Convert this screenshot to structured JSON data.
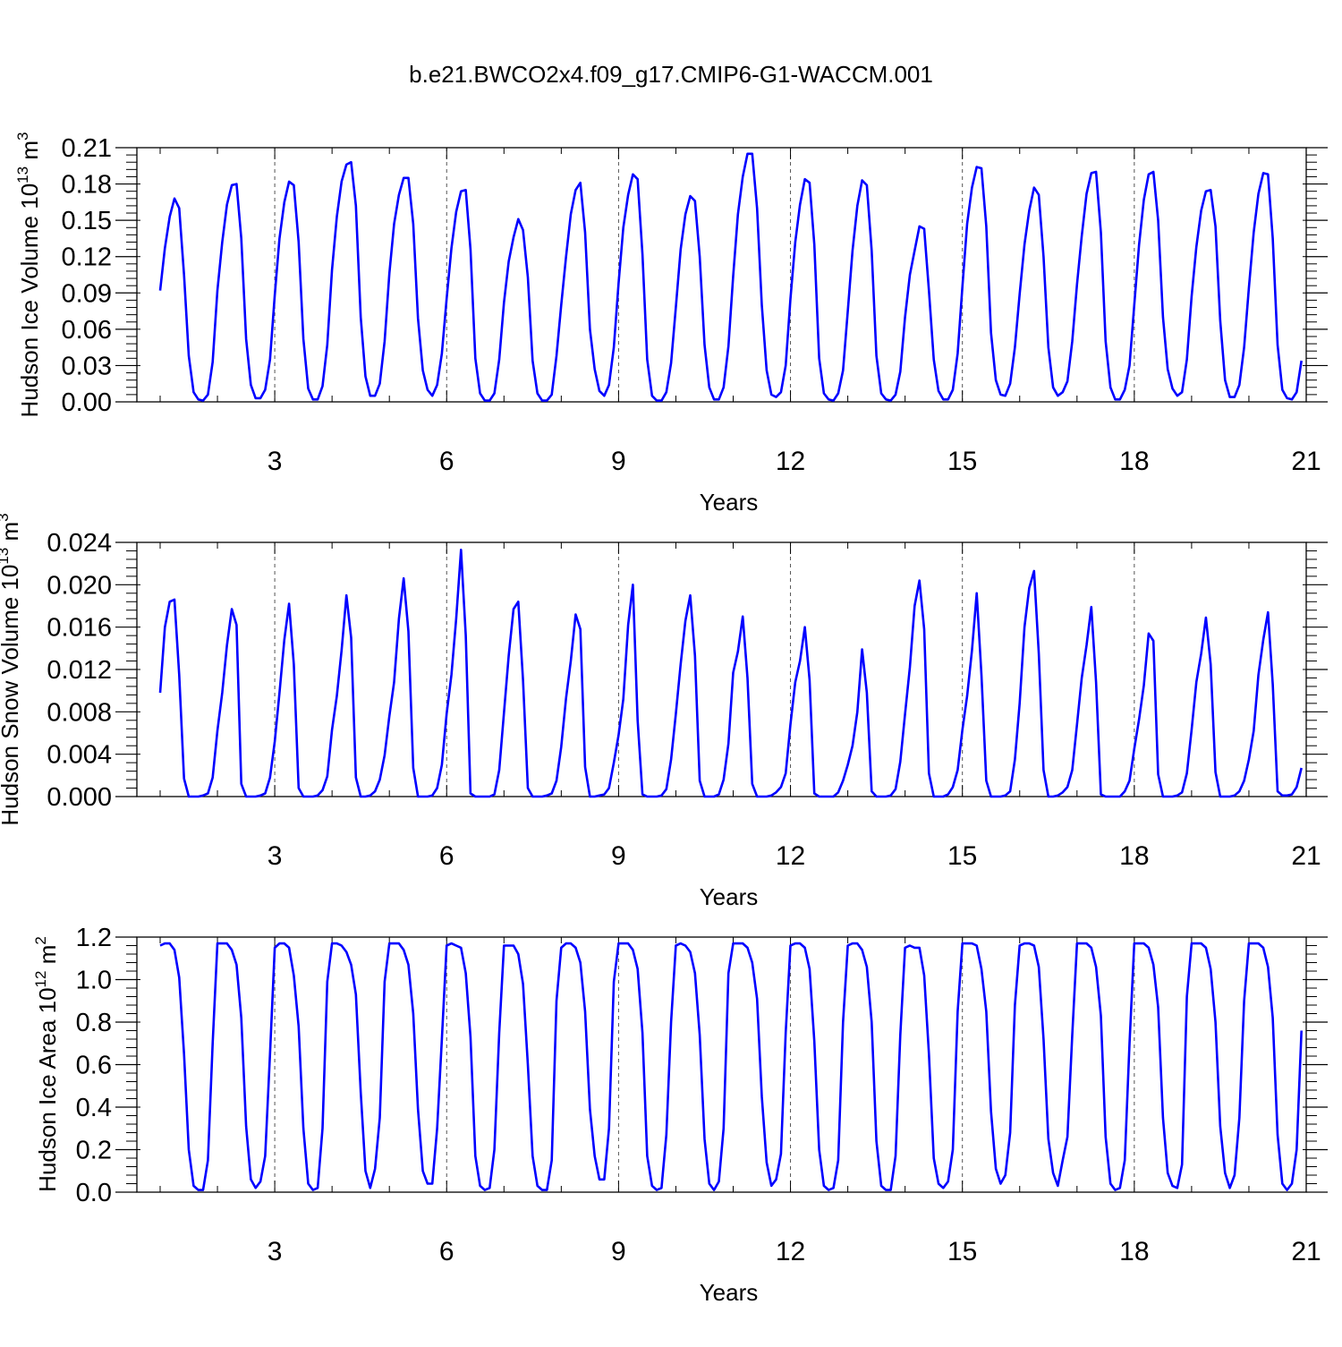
{
  "figure": {
    "title": "b.e21.BWCO2x4.f09_g17.CMIP6-G1-WACCM.001",
    "line_color": "#0000ff"
  },
  "chart_data": [
    {
      "type": "line",
      "title": "",
      "xlabel": "Years",
      "ylabel": "Hudson Ice Volume 10",
      "ylabel_exp": "13",
      "ylabel_unit": "m",
      "ylabel_unit_exp": "3",
      "xlim": [
        1.0,
        21.0
      ],
      "ylim": [
        0.0,
        0.21
      ],
      "xticks": [
        3,
        6,
        9,
        12,
        15,
        18,
        21
      ],
      "xtick_labels": [
        "3",
        "6",
        "9",
        "12",
        "15",
        "18",
        "21"
      ],
      "yticks": [
        0.0,
        0.03,
        0.06,
        0.09,
        0.12,
        0.15,
        0.18,
        0.21
      ],
      "ytick_labels": [
        "0.00",
        "0.03",
        "0.06",
        "0.09",
        "0.12",
        "0.15",
        "0.18",
        "0.21"
      ],
      "grid": "vertical dashed lines at major x ticks",
      "series": [
        {
          "x_start": 1.0,
          "x_step": 0.0833333,
          "values": [
            0.092,
            0.127,
            0.153,
            0.168,
            0.16,
            0.105,
            0.038,
            0.008,
            0.002,
            0.001,
            0.006,
            0.033,
            0.092,
            0.132,
            0.163,
            0.179,
            0.18,
            0.135,
            0.052,
            0.014,
            0.003,
            0.003,
            0.01,
            0.035,
            0.088,
            0.135,
            0.165,
            0.182,
            0.179,
            0.132,
            0.052,
            0.011,
            0.002,
            0.002,
            0.013,
            0.047,
            0.109,
            0.153,
            0.182,
            0.196,
            0.198,
            0.162,
            0.07,
            0.021,
            0.005,
            0.005,
            0.015,
            0.05,
            0.106,
            0.147,
            0.171,
            0.185,
            0.185,
            0.147,
            0.069,
            0.026,
            0.01,
            0.005,
            0.014,
            0.04,
            0.085,
            0.127,
            0.157,
            0.174,
            0.175,
            0.126,
            0.036,
            0.007,
            0.001,
            0.001,
            0.007,
            0.035,
            0.082,
            0.116,
            0.136,
            0.151,
            0.142,
            0.103,
            0.034,
            0.007,
            0.001,
            0.001,
            0.006,
            0.038,
            0.08,
            0.12,
            0.155,
            0.175,
            0.181,
            0.14,
            0.06,
            0.027,
            0.009,
            0.005,
            0.014,
            0.045,
            0.098,
            0.144,
            0.171,
            0.188,
            0.184,
            0.122,
            0.035,
            0.005,
            0.001,
            0.001,
            0.008,
            0.032,
            0.078,
            0.126,
            0.155,
            0.17,
            0.166,
            0.12,
            0.047,
            0.012,
            0.002,
            0.002,
            0.012,
            0.046,
            0.104,
            0.155,
            0.186,
            0.205,
            0.205,
            0.16,
            0.08,
            0.026,
            0.006,
            0.004,
            0.008,
            0.03,
            0.085,
            0.132,
            0.163,
            0.184,
            0.181,
            0.13,
            0.036,
            0.007,
            0.002,
            0.001,
            0.007,
            0.026,
            0.075,
            0.125,
            0.162,
            0.183,
            0.179,
            0.125,
            0.038,
            0.007,
            0.002,
            0.001,
            0.006,
            0.025,
            0.07,
            0.105,
            0.125,
            0.145,
            0.143,
            0.092,
            0.035,
            0.009,
            0.002,
            0.002,
            0.01,
            0.04,
            0.095,
            0.147,
            0.177,
            0.194,
            0.193,
            0.145,
            0.057,
            0.018,
            0.006,
            0.005,
            0.015,
            0.045,
            0.089,
            0.13,
            0.158,
            0.177,
            0.171,
            0.12,
            0.045,
            0.012,
            0.005,
            0.008,
            0.017,
            0.05,
            0.097,
            0.137,
            0.172,
            0.189,
            0.19,
            0.14,
            0.05,
            0.012,
            0.002,
            0.002,
            0.01,
            0.03,
            0.08,
            0.13,
            0.167,
            0.188,
            0.19,
            0.15,
            0.07,
            0.027,
            0.011,
            0.005,
            0.008,
            0.035,
            0.087,
            0.128,
            0.158,
            0.174,
            0.175,
            0.145,
            0.067,
            0.018,
            0.004,
            0.004,
            0.014,
            0.045,
            0.094,
            0.14,
            0.172,
            0.189,
            0.188,
            0.135,
            0.047,
            0.01,
            0.003,
            0.002,
            0.008,
            0.034
          ]
        }
      ]
    },
    {
      "type": "line",
      "title": "",
      "xlabel": "Years",
      "ylabel": "Hudson Snow Volume 10",
      "ylabel_exp": "13",
      "ylabel_unit": "m",
      "ylabel_unit_exp": "3",
      "xlim": [
        1.0,
        21.0
      ],
      "ylim": [
        0.0,
        0.024
      ],
      "xticks": [
        3,
        6,
        9,
        12,
        15,
        18,
        21
      ],
      "xtick_labels": [
        "3",
        "6",
        "9",
        "12",
        "15",
        "18",
        "21"
      ],
      "yticks": [
        0.0,
        0.004,
        0.008,
        0.012,
        0.016,
        0.02,
        0.024
      ],
      "ytick_labels": [
        "0.000",
        "0.004",
        "0.008",
        "0.012",
        "0.016",
        "0.020",
        "0.024"
      ],
      "grid": "vertical dashed lines at major x ticks",
      "series": [
        {
          "x_start": 1.0,
          "x_step": 0.0833333,
          "values": [
            0.0098,
            0.016,
            0.0184,
            0.0186,
            0.0115,
            0.0017,
            0.0,
            0.0,
            0.0,
            0.0001,
            0.0003,
            0.0018,
            0.0062,
            0.0098,
            0.0143,
            0.0177,
            0.0162,
            0.0012,
            0.0,
            0.0,
            0.0,
            0.0001,
            0.0003,
            0.0018,
            0.0052,
            0.0098,
            0.0148,
            0.0182,
            0.0125,
            0.0008,
            0.0,
            0.0,
            0.0,
            0.0001,
            0.0006,
            0.0019,
            0.0063,
            0.0095,
            0.0138,
            0.019,
            0.015,
            0.0018,
            0.0,
            0.0,
            0.0001,
            0.0005,
            0.0016,
            0.0039,
            0.0076,
            0.0108,
            0.0168,
            0.0206,
            0.0156,
            0.0027,
            0.0,
            0.0,
            0.0,
            0.0001,
            0.0008,
            0.003,
            0.0078,
            0.0115,
            0.0168,
            0.0233,
            0.0152,
            0.0003,
            0.0,
            0.0,
            0.0,
            0.0,
            0.0002,
            0.0025,
            0.0079,
            0.0133,
            0.0177,
            0.0184,
            0.011,
            0.0008,
            0.0,
            0.0,
            0.0,
            0.0001,
            0.0003,
            0.0015,
            0.0047,
            0.0093,
            0.0128,
            0.0172,
            0.0158,
            0.0028,
            0.0,
            0.0,
            0.0001,
            0.0002,
            0.0008,
            0.0032,
            0.0058,
            0.0092,
            0.0162,
            0.02,
            0.0072,
            0.0002,
            0.0,
            0.0,
            0.0,
            0.0001,
            0.0007,
            0.0035,
            0.0078,
            0.0125,
            0.0166,
            0.019,
            0.0133,
            0.0015,
            0.0,
            0.0,
            0.0,
            0.0002,
            0.0016,
            0.005,
            0.0117,
            0.0137,
            0.017,
            0.0112,
            0.0012,
            0.0,
            0.0,
            0.0,
            0.0001,
            0.0004,
            0.0009,
            0.0022,
            0.0068,
            0.0108,
            0.0128,
            0.016,
            0.011,
            0.0003,
            0.0,
            0.0,
            0.0,
            0.0,
            0.0004,
            0.0015,
            0.003,
            0.0048,
            0.008,
            0.0139,
            0.0098,
            0.0005,
            0.0,
            0.0,
            0.0,
            0.0001,
            0.0007,
            0.0033,
            0.0078,
            0.0122,
            0.018,
            0.0204,
            0.0158,
            0.0022,
            0.0,
            0.0,
            0.0,
            0.0002,
            0.0009,
            0.0025,
            0.0063,
            0.0095,
            0.0138,
            0.0192,
            0.0115,
            0.0015,
            0.0,
            0.0,
            0.0,
            0.0001,
            0.0005,
            0.0035,
            0.0088,
            0.016,
            0.0197,
            0.0213,
            0.0135,
            0.0025,
            0.0,
            0.0,
            0.0001,
            0.0004,
            0.0009,
            0.0025,
            0.0068,
            0.0112,
            0.0143,
            0.0179,
            0.0108,
            0.0002,
            0.0,
            0.0,
            0.0,
            0.0,
            0.0005,
            0.0015,
            0.0045,
            0.0073,
            0.0105,
            0.0154,
            0.0147,
            0.0021,
            0.0,
            0.0,
            0.0,
            0.0001,
            0.0004,
            0.0022,
            0.0063,
            0.0108,
            0.0135,
            0.0169,
            0.0125,
            0.0023,
            0.0,
            0.0,
            0.0,
            0.0001,
            0.0005,
            0.0015,
            0.0035,
            0.0062,
            0.0115,
            0.0148,
            0.0174,
            0.0106,
            0.0005,
            0.0001,
            0.0001,
            0.0002,
            0.0009,
            0.0027
          ]
        }
      ]
    },
    {
      "type": "line",
      "title": "",
      "xlabel": "Years",
      "ylabel": "Hudson Ice Area 10",
      "ylabel_exp": "12",
      "ylabel_unit": "m",
      "ylabel_unit_exp": "2",
      "xlim": [
        1.0,
        21.0
      ],
      "ylim": [
        0.0,
        1.2
      ],
      "xticks": [
        3,
        6,
        9,
        12,
        15,
        18,
        21
      ],
      "xtick_labels": [
        "3",
        "6",
        "9",
        "12",
        "15",
        "18",
        "21"
      ],
      "yticks": [
        0.0,
        0.2,
        0.4,
        0.6,
        0.8,
        1.0,
        1.2
      ],
      "ytick_labels": [
        "0.0",
        "0.2",
        "0.4",
        "0.6",
        "0.8",
        "1.0",
        "1.2"
      ],
      "grid": "vertical dashed lines at major x ticks",
      "series": [
        {
          "x_start": 1.0,
          "x_step": 0.0833333,
          "values": [
            1.16,
            1.17,
            1.17,
            1.14,
            1.01,
            0.65,
            0.2,
            0.03,
            0.01,
            0.01,
            0.15,
            0.7,
            1.17,
            1.17,
            1.17,
            1.14,
            1.07,
            0.82,
            0.31,
            0.06,
            0.02,
            0.05,
            0.17,
            0.65,
            1.15,
            1.17,
            1.17,
            1.15,
            1.02,
            0.78,
            0.3,
            0.04,
            0.01,
            0.02,
            0.3,
            0.99,
            1.17,
            1.17,
            1.16,
            1.13,
            1.07,
            0.93,
            0.47,
            0.1,
            0.02,
            0.11,
            0.35,
            0.99,
            1.17,
            1.17,
            1.17,
            1.14,
            1.07,
            0.84,
            0.39,
            0.1,
            0.04,
            0.04,
            0.3,
            0.72,
            1.16,
            1.17,
            1.16,
            1.15,
            1.03,
            0.73,
            0.17,
            0.03,
            0.01,
            0.02,
            0.2,
            0.75,
            1.16,
            1.16,
            1.16,
            1.12,
            0.98,
            0.6,
            0.17,
            0.03,
            0.01,
            0.01,
            0.15,
            0.9,
            1.15,
            1.17,
            1.17,
            1.15,
            1.08,
            0.85,
            0.39,
            0.17,
            0.06,
            0.06,
            0.3,
            0.99,
            1.17,
            1.17,
            1.17,
            1.14,
            1.05,
            0.75,
            0.17,
            0.03,
            0.01,
            0.02,
            0.27,
            0.8,
            1.16,
            1.17,
            1.16,
            1.13,
            1.03,
            0.74,
            0.25,
            0.04,
            0.01,
            0.05,
            0.3,
            1.03,
            1.17,
            1.17,
            1.17,
            1.15,
            1.08,
            0.91,
            0.45,
            0.14,
            0.03,
            0.06,
            0.18,
            0.75,
            1.16,
            1.17,
            1.17,
            1.15,
            1.05,
            0.71,
            0.2,
            0.03,
            0.01,
            0.02,
            0.15,
            0.8,
            1.16,
            1.17,
            1.17,
            1.14,
            1.06,
            0.8,
            0.24,
            0.03,
            0.01,
            0.01,
            0.17,
            0.74,
            1.15,
            1.16,
            1.15,
            1.15,
            1.02,
            0.65,
            0.16,
            0.04,
            0.02,
            0.05,
            0.2,
            0.85,
            1.17,
            1.17,
            1.17,
            1.16,
            1.05,
            0.85,
            0.38,
            0.11,
            0.04,
            0.08,
            0.28,
            0.88,
            1.16,
            1.17,
            1.17,
            1.16,
            1.06,
            0.72,
            0.25,
            0.09,
            0.03,
            0.15,
            0.26,
            0.74,
            1.17,
            1.17,
            1.17,
            1.15,
            1.06,
            0.83,
            0.26,
            0.04,
            0.01,
            0.02,
            0.15,
            0.7,
            1.17,
            1.17,
            1.17,
            1.15,
            1.07,
            0.87,
            0.35,
            0.09,
            0.03,
            0.02,
            0.13,
            0.92,
            1.17,
            1.17,
            1.17,
            1.15,
            1.05,
            0.8,
            0.31,
            0.09,
            0.02,
            0.08,
            0.35,
            0.9,
            1.17,
            1.17,
            1.17,
            1.15,
            1.06,
            0.82,
            0.27,
            0.04,
            0.01,
            0.04,
            0.2,
            0.76
          ]
        }
      ]
    }
  ]
}
